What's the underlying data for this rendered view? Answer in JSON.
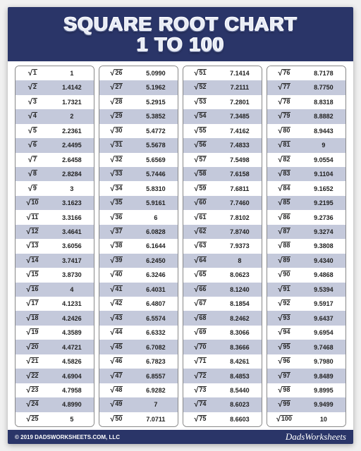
{
  "title_line1": "SQUARE ROOT CHART",
  "title_line2": "1 TO 100",
  "footer_copyright": "© 2019 DADSWORKSHEETS.COM, LLC",
  "footer_brand": "DadsWorksheets",
  "colors": {
    "header_bg": "#2a3568",
    "row_odd": "#ffffff",
    "row_even": "#c4c9db",
    "border": "#888888",
    "text": "#222222",
    "title_text": "#e8ecf5"
  },
  "columns": [
    [
      {
        "n": "1",
        "v": "1"
      },
      {
        "n": "2",
        "v": "1.4142"
      },
      {
        "n": "3",
        "v": "1.7321"
      },
      {
        "n": "4",
        "v": "2"
      },
      {
        "n": "5",
        "v": "2.2361"
      },
      {
        "n": "6",
        "v": "2.4495"
      },
      {
        "n": "7",
        "v": "2.6458"
      },
      {
        "n": "8",
        "v": "2.8284"
      },
      {
        "n": "9",
        "v": "3"
      },
      {
        "n": "10",
        "v": "3.1623"
      },
      {
        "n": "11",
        "v": "3.3166"
      },
      {
        "n": "12",
        "v": "3.4641"
      },
      {
        "n": "13",
        "v": "3.6056"
      },
      {
        "n": "14",
        "v": "3.7417"
      },
      {
        "n": "15",
        "v": "3.8730"
      },
      {
        "n": "16",
        "v": "4"
      },
      {
        "n": "17",
        "v": "4.1231"
      },
      {
        "n": "18",
        "v": "4.2426"
      },
      {
        "n": "19",
        "v": "4.3589"
      },
      {
        "n": "20",
        "v": "4.4721"
      },
      {
        "n": "21",
        "v": "4.5826"
      },
      {
        "n": "22",
        "v": "4.6904"
      },
      {
        "n": "23",
        "v": "4.7958"
      },
      {
        "n": "24",
        "v": "4.8990"
      },
      {
        "n": "25",
        "v": "5"
      }
    ],
    [
      {
        "n": "26",
        "v": "5.0990"
      },
      {
        "n": "27",
        "v": "5.1962"
      },
      {
        "n": "28",
        "v": "5.2915"
      },
      {
        "n": "29",
        "v": "5.3852"
      },
      {
        "n": "30",
        "v": "5.4772"
      },
      {
        "n": "31",
        "v": "5.5678"
      },
      {
        "n": "32",
        "v": "5.6569"
      },
      {
        "n": "33",
        "v": "5.7446"
      },
      {
        "n": "34",
        "v": "5.8310"
      },
      {
        "n": "35",
        "v": "5.9161"
      },
      {
        "n": "36",
        "v": "6"
      },
      {
        "n": "37",
        "v": "6.0828"
      },
      {
        "n": "38",
        "v": "6.1644"
      },
      {
        "n": "39",
        "v": "6.2450"
      },
      {
        "n": "40",
        "v": "6.3246"
      },
      {
        "n": "41",
        "v": "6.4031"
      },
      {
        "n": "42",
        "v": "6.4807"
      },
      {
        "n": "43",
        "v": "6.5574"
      },
      {
        "n": "44",
        "v": "6.6332"
      },
      {
        "n": "45",
        "v": "6.7082"
      },
      {
        "n": "46",
        "v": "6.7823"
      },
      {
        "n": "47",
        "v": "6.8557"
      },
      {
        "n": "48",
        "v": "6.9282"
      },
      {
        "n": "49",
        "v": "7"
      },
      {
        "n": "50",
        "v": "7.0711"
      }
    ],
    [
      {
        "n": "51",
        "v": "7.1414"
      },
      {
        "n": "52",
        "v": "7.2111"
      },
      {
        "n": "53",
        "v": "7.2801"
      },
      {
        "n": "54",
        "v": "7.3485"
      },
      {
        "n": "55",
        "v": "7.4162"
      },
      {
        "n": "56",
        "v": "7.4833"
      },
      {
        "n": "57",
        "v": "7.5498"
      },
      {
        "n": "58",
        "v": "7.6158"
      },
      {
        "n": "59",
        "v": "7.6811"
      },
      {
        "n": "60",
        "v": "7.7460"
      },
      {
        "n": "61",
        "v": "7.8102"
      },
      {
        "n": "62",
        "v": "7.8740"
      },
      {
        "n": "63",
        "v": "7.9373"
      },
      {
        "n": "64",
        "v": "8"
      },
      {
        "n": "65",
        "v": "8.0623"
      },
      {
        "n": "66",
        "v": "8.1240"
      },
      {
        "n": "67",
        "v": "8.1854"
      },
      {
        "n": "68",
        "v": "8.2462"
      },
      {
        "n": "69",
        "v": "8.3066"
      },
      {
        "n": "70",
        "v": "8.3666"
      },
      {
        "n": "71",
        "v": "8.4261"
      },
      {
        "n": "72",
        "v": "8.4853"
      },
      {
        "n": "73",
        "v": "8.5440"
      },
      {
        "n": "74",
        "v": "8.6023"
      },
      {
        "n": "75",
        "v": "8.6603"
      }
    ],
    [
      {
        "n": "76",
        "v": "8.7178"
      },
      {
        "n": "77",
        "v": "8.7750"
      },
      {
        "n": "78",
        "v": "8.8318"
      },
      {
        "n": "79",
        "v": "8.8882"
      },
      {
        "n": "80",
        "v": "8.9443"
      },
      {
        "n": "81",
        "v": "9"
      },
      {
        "n": "82",
        "v": "9.0554"
      },
      {
        "n": "83",
        "v": "9.1104"
      },
      {
        "n": "84",
        "v": "9.1652"
      },
      {
        "n": "85",
        "v": "9.2195"
      },
      {
        "n": "86",
        "v": "9.2736"
      },
      {
        "n": "87",
        "v": "9.3274"
      },
      {
        "n": "88",
        "v": "9.3808"
      },
      {
        "n": "89",
        "v": "9.4340"
      },
      {
        "n": "90",
        "v": "9.4868"
      },
      {
        "n": "91",
        "v": "9.5394"
      },
      {
        "n": "92",
        "v": "9.5917"
      },
      {
        "n": "93",
        "v": "9.6437"
      },
      {
        "n": "94",
        "v": "9.6954"
      },
      {
        "n": "95",
        "v": "9.7468"
      },
      {
        "n": "96",
        "v": "9.7980"
      },
      {
        "n": "97",
        "v": "9.8489"
      },
      {
        "n": "98",
        "v": "9.8995"
      },
      {
        "n": "99",
        "v": "9.9499"
      },
      {
        "n": "100",
        "v": "10"
      }
    ]
  ]
}
